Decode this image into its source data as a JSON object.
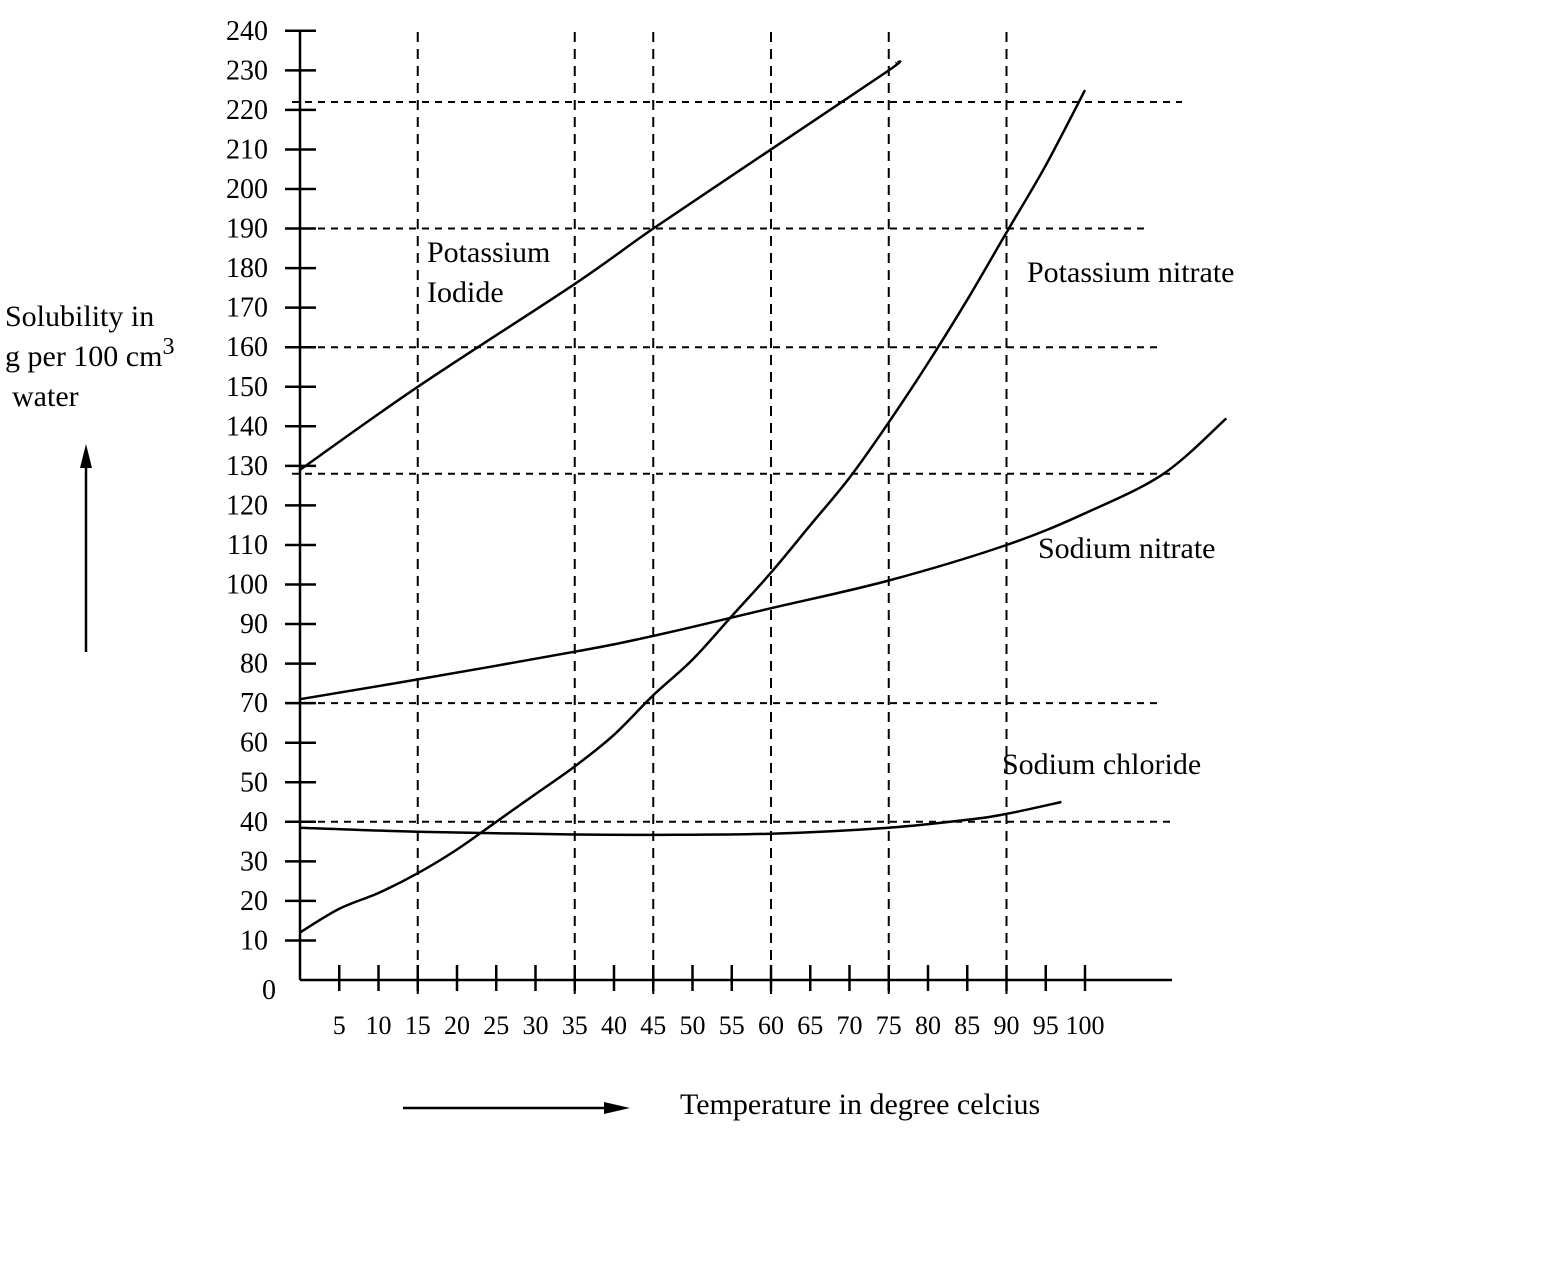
{
  "chart_data": {
    "type": "line",
    "title": "",
    "ylabel_lines": [
      "Solubility in",
      "g per 100 cm",
      "water"
    ],
    "ylabel_superscript": "3",
    "xlabel": "Temperature in degree celcius",
    "origin_label": "0",
    "xlim": [
      0,
      112
    ],
    "ylim": [
      0,
      240
    ],
    "x_ticks": [
      5,
      10,
      15,
      20,
      25,
      30,
      35,
      40,
      45,
      50,
      55,
      60,
      65,
      70,
      75,
      80,
      85,
      90,
      95,
      100
    ],
    "y_ticks": [
      10,
      20,
      30,
      40,
      50,
      60,
      70,
      80,
      90,
      100,
      110,
      120,
      130,
      140,
      150,
      160,
      170,
      180,
      190,
      200,
      210,
      220,
      230,
      240
    ],
    "grid_x": [
      15,
      35,
      45,
      60,
      75,
      90
    ],
    "grid_y": [
      40,
      70,
      128,
      160,
      190,
      222
    ],
    "series": [
      {
        "name": "Potassium Iodide",
        "label_lines": [
          "Potassium",
          "Iodide"
        ],
        "x": [
          0,
          15,
          35,
          45,
          60,
          75,
          76
        ],
        "y": [
          129,
          150,
          176,
          190,
          210,
          230,
          232
        ]
      },
      {
        "name": "Potassium nitrate",
        "label_lines": [
          "Potassium nitrate"
        ],
        "x": [
          0,
          5,
          10,
          15,
          20,
          25,
          30,
          35,
          40,
          45,
          50,
          55,
          60,
          65,
          70,
          75,
          80,
          85,
          90,
          95,
          100
        ],
        "y": [
          12,
          18,
          22,
          27,
          33,
          40,
          47,
          54,
          62,
          72,
          81,
          92,
          103,
          115,
          127,
          141,
          156,
          172,
          189,
          206,
          225
        ]
      },
      {
        "name": "Sodium nitrate",
        "label_lines": [
          "Sodium nitrate"
        ],
        "x": [
          0,
          15,
          35,
          45,
          60,
          75,
          90,
          100,
          110,
          118
        ],
        "y": [
          71,
          76,
          83,
          87,
          94,
          101,
          110,
          118,
          128,
          142
        ]
      },
      {
        "name": "Sodium chloride",
        "label_lines": [
          "Sodium chloride"
        ],
        "x": [
          0,
          15,
          35,
          45,
          60,
          75,
          85,
          90,
          97
        ],
        "y": [
          38.5,
          37.5,
          36.8,
          36.7,
          37,
          38.5,
          40.5,
          42,
          45
        ]
      }
    ],
    "legend": "inline"
  }
}
